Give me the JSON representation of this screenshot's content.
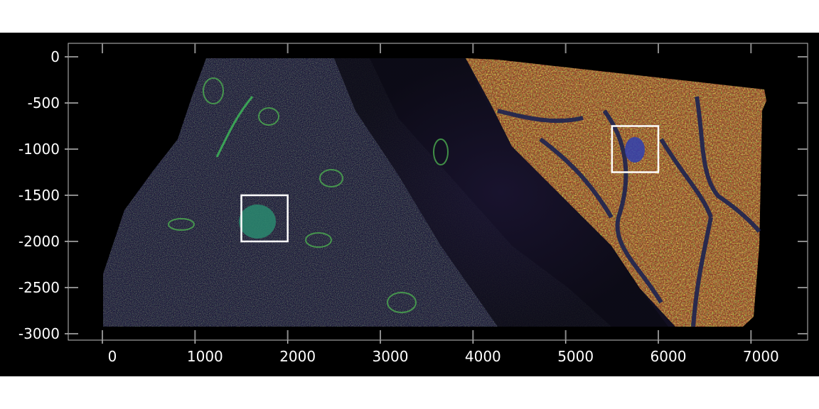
{
  "figure": {
    "image_description": "multiplex fluorescence tissue scan",
    "colors": {
      "panel_background": "#000000",
      "page_background": "#ffffff",
      "axis": "#bfbfbf",
      "tick_text": "#ffffff",
      "roi_box": "#ffffff",
      "tissue_red": "#c0392b",
      "tissue_green": "#3cb043",
      "tissue_blue": "#2b3a8f"
    },
    "x_ticks": [
      "0",
      "1000",
      "2000",
      "3000",
      "4000",
      "5000",
      "6000",
      "7000"
    ],
    "y_ticks": [
      "0",
      "-500",
      "-1000",
      "-1500",
      "-2000",
      "-2500",
      "-3000"
    ],
    "regions_of_interest": [
      {
        "x": [
          1500,
          2000
        ],
        "y": [
          -1500,
          -2000
        ]
      },
      {
        "x": [
          5500,
          6000
        ],
        "y": [
          -750,
          -1250
        ]
      }
    ]
  }
}
